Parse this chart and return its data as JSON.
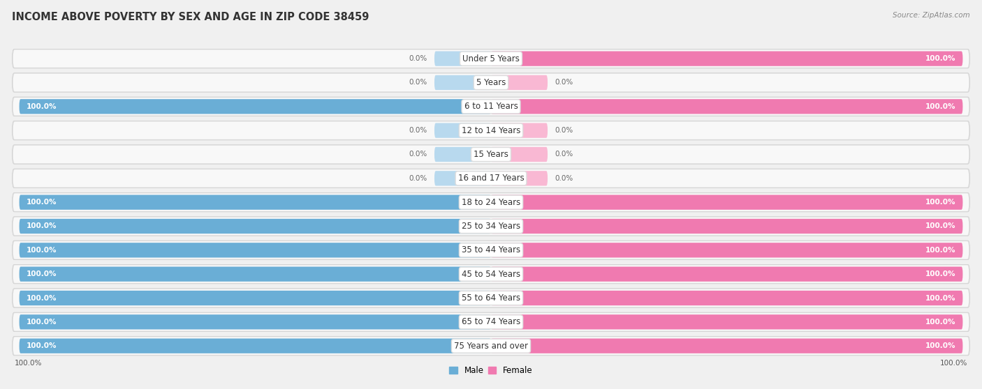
{
  "title": "INCOME ABOVE POVERTY BY SEX AND AGE IN ZIP CODE 38459",
  "source": "Source: ZipAtlas.com",
  "categories": [
    "Under 5 Years",
    "5 Years",
    "6 to 11 Years",
    "12 to 14 Years",
    "15 Years",
    "16 and 17 Years",
    "18 to 24 Years",
    "25 to 34 Years",
    "35 to 44 Years",
    "45 to 54 Years",
    "55 to 64 Years",
    "65 to 74 Years",
    "75 Years and over"
  ],
  "male_values": [
    0.0,
    0.0,
    100.0,
    0.0,
    0.0,
    0.0,
    100.0,
    100.0,
    100.0,
    100.0,
    100.0,
    100.0,
    100.0
  ],
  "female_values": [
    100.0,
    0.0,
    100.0,
    0.0,
    0.0,
    0.0,
    100.0,
    100.0,
    100.0,
    100.0,
    100.0,
    100.0,
    100.0
  ],
  "male_color": "#6aaed6",
  "female_color": "#f07ab0",
  "male_color_light": "#b8d9ee",
  "female_color_light": "#f9b8d3",
  "male_label": "Male",
  "female_label": "Female",
  "bg_color": "#f0f0f0",
  "row_bg_color": "#e8e8e8",
  "row_fill_color": "#ffffff",
  "title_fontsize": 10.5,
  "label_fontsize": 8.5,
  "value_fontsize": 7.5,
  "source_fontsize": 7.5
}
